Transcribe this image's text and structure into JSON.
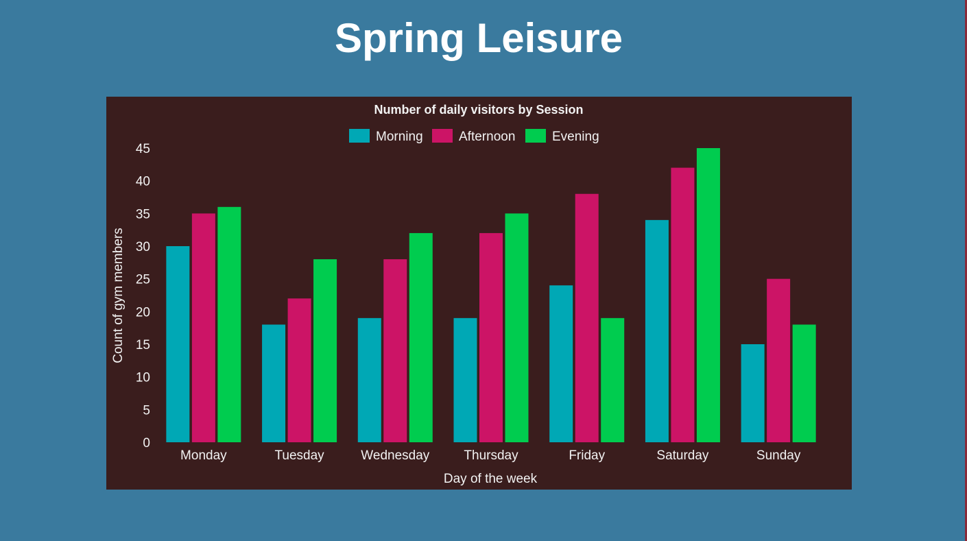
{
  "page": {
    "title": "Spring Leisure"
  },
  "chart_data": {
    "type": "bar",
    "title": "Number of daily visitors by Session",
    "xlabel": "Day of the week",
    "ylabel": "Count of gym members",
    "categories": [
      "Monday",
      "Tuesday",
      "Wednesday",
      "Thursday",
      "Friday",
      "Saturday",
      "Sunday"
    ],
    "series": [
      {
        "name": "Morning",
        "color": "#00a8b5",
        "values": [
          30,
          18,
          19,
          19,
          24,
          34,
          15
        ]
      },
      {
        "name": "Afternoon",
        "color": "#cc1466",
        "values": [
          35,
          22,
          28,
          32,
          38,
          42,
          25
        ]
      },
      {
        "name": "Evening",
        "color": "#00cc4f",
        "values": [
          36,
          28,
          32,
          35,
          19,
          45,
          18
        ]
      }
    ],
    "ylim": [
      0,
      45
    ],
    "yticks": [
      0,
      5,
      10,
      15,
      20,
      25,
      30,
      35,
      40,
      45
    ],
    "legend_position": "top-center",
    "grid": false,
    "colors": {
      "panel_background": "#3a1d1d",
      "page_background": "#3a7a9e",
      "text": "#f2f2f2"
    }
  }
}
